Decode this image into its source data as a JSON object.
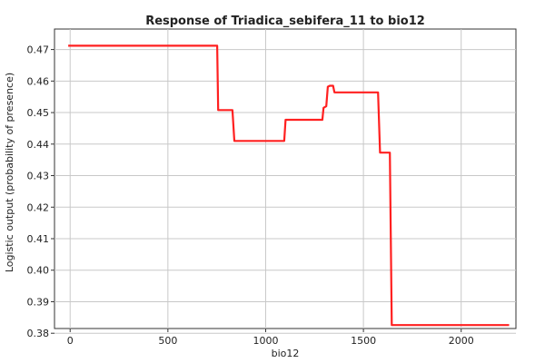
{
  "chart_data": {
    "type": "line",
    "title": "Response of Triadica_sebifera_11 to bio12",
    "xlabel": "bio12",
    "ylabel": "Logistic output (probability of presence)",
    "xlim": [
      -80,
      2280
    ],
    "ylim": [
      0.3815,
      0.4765
    ],
    "xticks": [
      0,
      500,
      1000,
      1500,
      2000
    ],
    "xtick_labels": [
      "0",
      "500",
      "1000",
      "1500",
      "2000"
    ],
    "yticks": [
      0.38,
      0.39,
      0.4,
      0.41,
      0.42,
      0.43,
      0.44,
      0.45,
      0.46,
      0.47
    ],
    "ytick_labels": [
      "0.38",
      "0.39",
      "0.40",
      "0.41",
      "0.42",
      "0.43",
      "0.44",
      "0.45",
      "0.46",
      "0.47"
    ],
    "grid": true,
    "series": [
      {
        "color": "#ff2020",
        "x": [
          -10,
          752,
          757,
          830,
          840,
          1095,
          1102,
          1290,
          1296,
          1310,
          1318,
          1328,
          1345,
          1352,
          1575,
          1585,
          1635,
          1645,
          2245
        ],
        "y": [
          0.4712,
          0.4712,
          0.4508,
          0.4508,
          0.441,
          0.441,
          0.4477,
          0.4477,
          0.4515,
          0.452,
          0.4582,
          0.4585,
          0.4585,
          0.4564,
          0.4564,
          0.4373,
          0.4373,
          0.3826,
          0.3826
        ]
      }
    ]
  }
}
